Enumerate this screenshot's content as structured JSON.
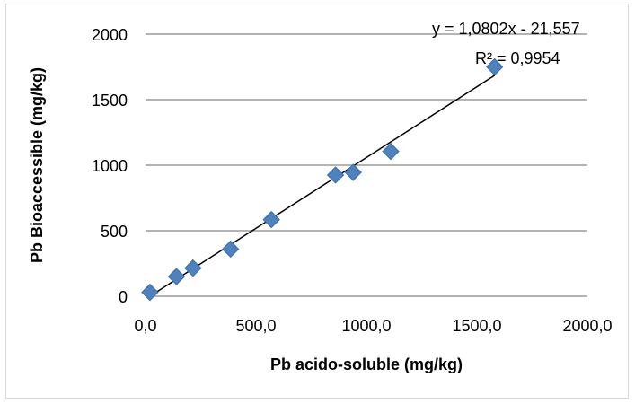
{
  "chart_data": {
    "type": "scatter",
    "xlabel": "Pb acido-soluble (mg/kg)",
    "ylabel": "Pb Bioaccessible (mg/kg)",
    "xlim": [
      0,
      2000
    ],
    "ylim": [
      0,
      2000
    ],
    "x_ticks": [
      0,
      500,
      1000,
      1500,
      2000
    ],
    "x_tick_labels": [
      "0,0",
      "500,0",
      "1000,0",
      "1500,0",
      "2000,0"
    ],
    "y_ticks": [
      0,
      500,
      1000,
      1500,
      2000
    ],
    "y_tick_labels": [
      "0",
      "500",
      "1000",
      "1500",
      "2000"
    ],
    "grid": "horizontal",
    "legend": "none",
    "marker": "diamond",
    "marker_color": "#4F81BD",
    "series": [
      {
        "x": [
          20,
          140,
          215,
          385,
          570,
          860,
          940,
          1110,
          1580
        ],
        "y": [
          30,
          150,
          215,
          360,
          585,
          925,
          945,
          1105,
          1750
        ]
      }
    ],
    "trendline": {
      "type": "linear",
      "slope": 1.0802,
      "intercept": -21.557,
      "x_range": [
        20,
        1580
      ],
      "equation": "y = 1,0802x - 21,557",
      "r2_label": "R² = 0,9954",
      "color": "#000000"
    }
  }
}
